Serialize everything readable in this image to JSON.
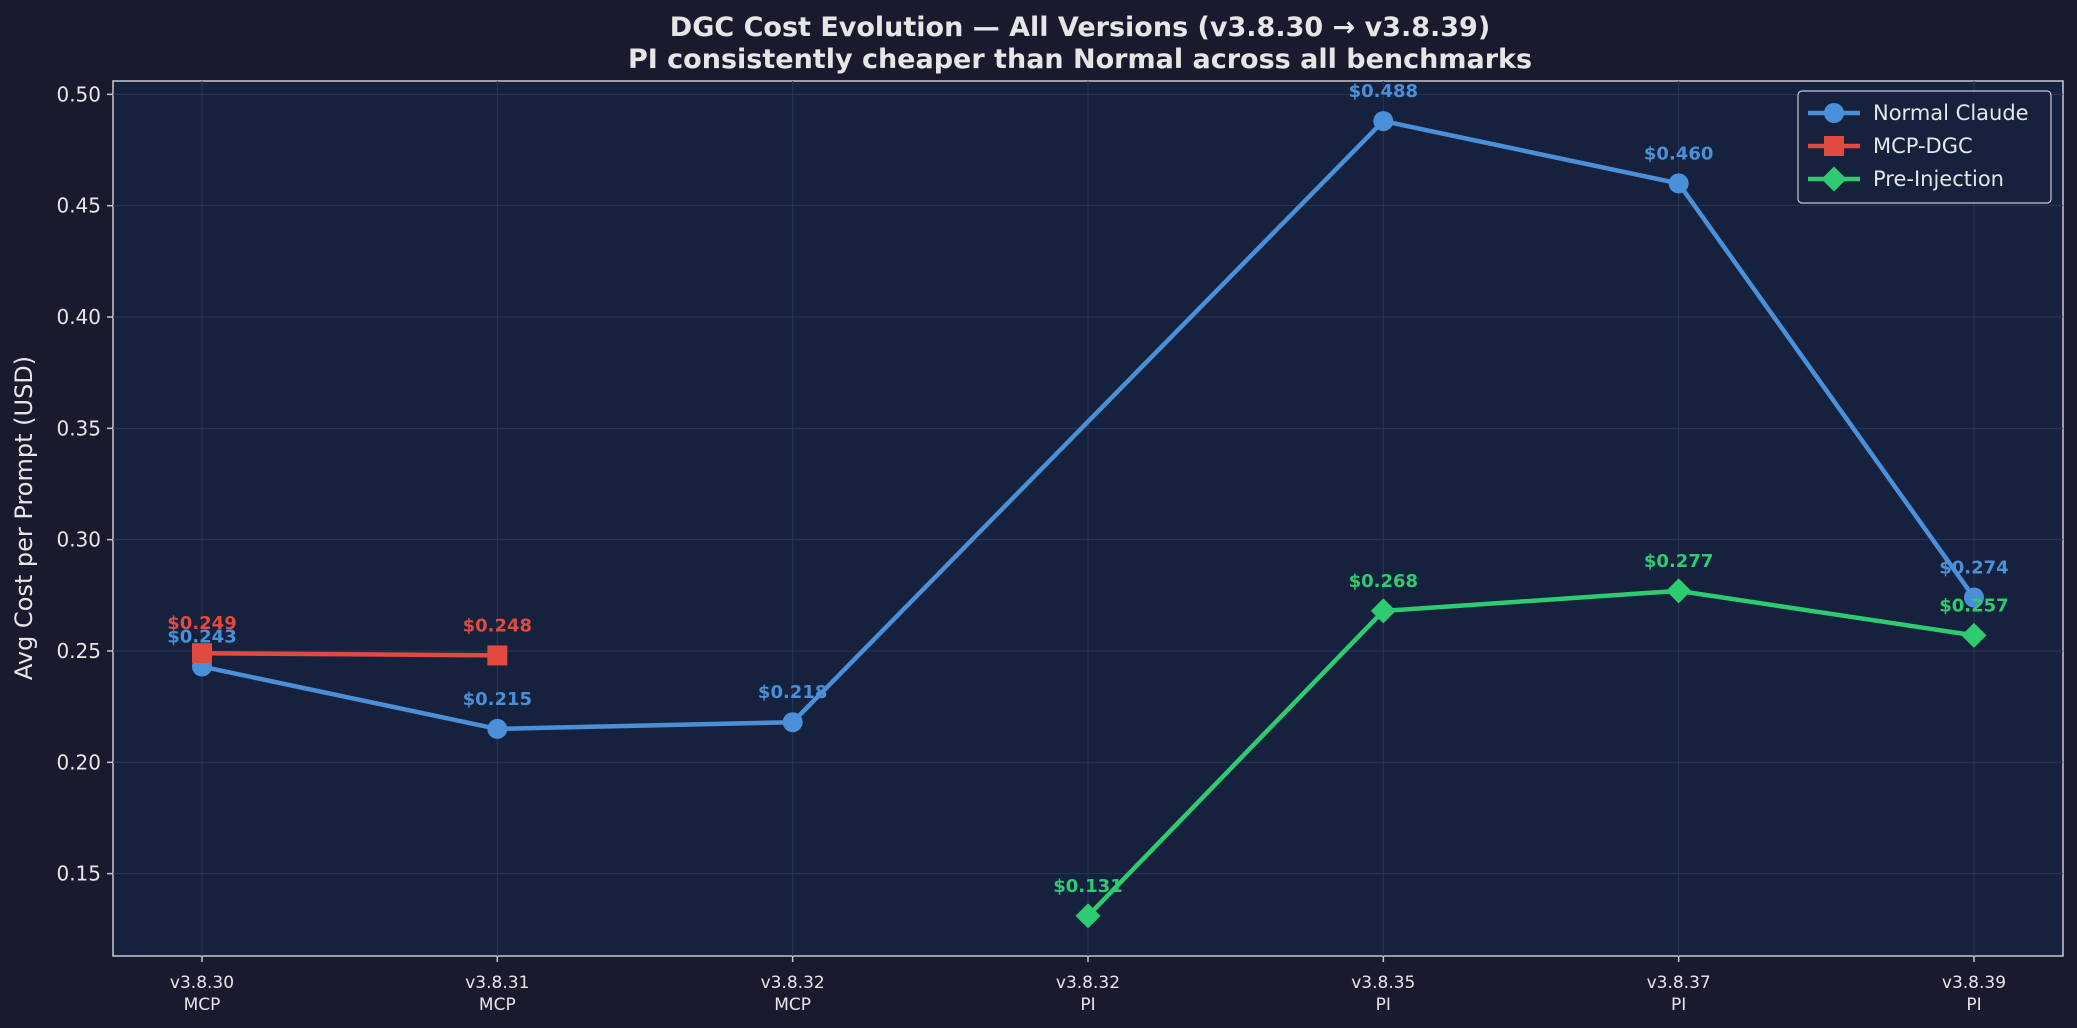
{
  "chart_data": {
    "type": "line",
    "title": "DGC Cost Evolution — All Versions (v3.8.30 → v3.8.39)",
    "subtitle": "PI consistently cheaper than Normal across all benchmarks",
    "xlabel": "",
    "ylabel": "Avg Cost per Prompt (USD)",
    "ylim": [
      0.113,
      0.506
    ],
    "yticks": [
      "0.15",
      "0.20",
      "0.25",
      "0.30",
      "0.35",
      "0.40",
      "0.45",
      "0.50"
    ],
    "categories": [
      {
        "version": "v3.8.30",
        "mode": "MCP"
      },
      {
        "version": "v3.8.31",
        "mode": "MCP"
      },
      {
        "version": "v3.8.32",
        "mode": "MCP"
      },
      {
        "version": "v3.8.32",
        "mode": "PI"
      },
      {
        "version": "v3.8.35",
        "mode": "PI"
      },
      {
        "version": "v3.8.37",
        "mode": "PI"
      },
      {
        "version": "v3.8.39",
        "mode": "PI"
      }
    ],
    "series": [
      {
        "name": "Normal Claude",
        "color": "#4a90d9",
        "marker": "circle",
        "points": [
          [
            0,
            0.243
          ],
          [
            1,
            0.215
          ],
          [
            2,
            0.218
          ],
          [
            4,
            0.488
          ],
          [
            5,
            0.46
          ],
          [
            6,
            0.274
          ]
        ],
        "labels": [
          "$0.243",
          "$0.215",
          "$0.218",
          "$0.488",
          "$0.460",
          "$0.274"
        ]
      },
      {
        "name": "MCP-DGC",
        "color": "#e04a3f",
        "marker": "square",
        "points": [
          [
            0,
            0.249
          ],
          [
            1,
            0.248
          ]
        ],
        "labels": [
          "$0.249",
          "$0.248"
        ]
      },
      {
        "name": "Pre-Injection",
        "color": "#2ecc71",
        "marker": "diamond",
        "points": [
          [
            3,
            0.131
          ],
          [
            4,
            0.268
          ],
          [
            5,
            0.277
          ],
          [
            6,
            0.257
          ]
        ],
        "labels": [
          "$0.131",
          "$0.268",
          "$0.277",
          "$0.257"
        ]
      }
    ],
    "legend": {
      "position": "top-right"
    },
    "grid": true
  }
}
